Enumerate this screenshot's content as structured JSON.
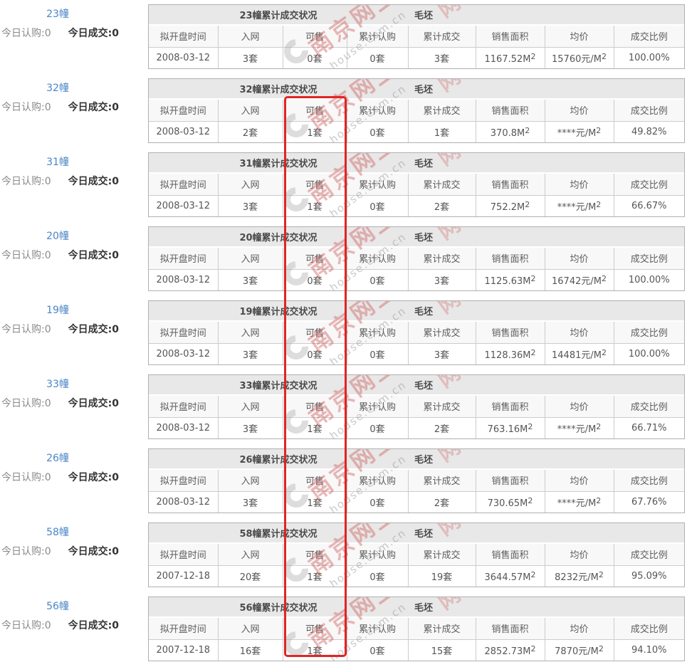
{
  "watermark": {
    "cn": "南京网上",
    "en": "house.com.cn",
    "fragment": "网上"
  },
  "highlight": {
    "color": "#e12424",
    "column": "可售"
  },
  "table": {
    "columns": [
      "拟开盘时间",
      "入网",
      "可售",
      "累计认购",
      "累计成交",
      "销售面积",
      "均价",
      "成交比例"
    ]
  },
  "blocks": [
    {
      "name": "23幢",
      "today_subscribe": "今日认购:0",
      "today_deal": "今日成交:0",
      "title": "23幢累计成交状况",
      "finish": "毛坯",
      "values": [
        "2008-03-12",
        "3套",
        "0套",
        "0套",
        "3套",
        "1167.52M²",
        "15760元/M²",
        "100.00%"
      ]
    },
    {
      "name": "32幢",
      "today_subscribe": "今日认购:0",
      "today_deal": "今日成交:0",
      "title": "32幢累计成交状况",
      "finish": "毛坯",
      "values": [
        "2008-03-12",
        "2套",
        "1套",
        "0套",
        "1套",
        "370.8M²",
        "****元/M²",
        "49.82%"
      ]
    },
    {
      "name": "31幢",
      "today_subscribe": "今日认购:0",
      "today_deal": "今日成交:0",
      "title": "31幢累计成交状况",
      "finish": "毛坯",
      "values": [
        "2008-03-12",
        "3套",
        "1套",
        "0套",
        "2套",
        "752.2M²",
        "****元/M²",
        "66.67%"
      ]
    },
    {
      "name": "20幢",
      "today_subscribe": "今日认购:0",
      "today_deal": "今日成交:0",
      "title": "20幢累计成交状况",
      "finish": "毛坯",
      "values": [
        "2008-03-12",
        "3套",
        "0套",
        "0套",
        "3套",
        "1125.63M²",
        "16742元/M²",
        "100.00%"
      ]
    },
    {
      "name": "19幢",
      "today_subscribe": "今日认购:0",
      "today_deal": "今日成交:0",
      "title": "19幢累计成交状况",
      "finish": "毛坯",
      "values": [
        "2008-03-12",
        "3套",
        "0套",
        "0套",
        "3套",
        "1128.36M²",
        "14481元/M²",
        "100.00%"
      ]
    },
    {
      "name": "33幢",
      "today_subscribe": "今日认购:0",
      "today_deal": "今日成交:0",
      "title": "33幢累计成交状况",
      "finish": "毛坯",
      "values": [
        "2008-03-12",
        "3套",
        "1套",
        "0套",
        "2套",
        "763.16M²",
        "****元/M²",
        "66.71%"
      ]
    },
    {
      "name": "26幢",
      "today_subscribe": "今日认购:0",
      "today_deal": "今日成交:0",
      "title": "26幢累计成交状况",
      "finish": "毛坯",
      "values": [
        "2008-03-12",
        "3套",
        "1套",
        "0套",
        "2套",
        "730.65M²",
        "****元/M²",
        "67.76%"
      ]
    },
    {
      "name": "58幢",
      "today_subscribe": "今日认购:0",
      "today_deal": "今日成交:0",
      "title": "58幢累计成交状况",
      "finish": "毛坯",
      "values": [
        "2007-12-18",
        "20套",
        "1套",
        "0套",
        "19套",
        "3644.57M²",
        "8232元/M²",
        "95.09%"
      ]
    },
    {
      "name": "56幢",
      "today_subscribe": "今日认购:0",
      "today_deal": "今日成交:0",
      "title": "56幢累计成交状况",
      "finish": "毛坯",
      "values": [
        "2007-12-18",
        "16套",
        "1套",
        "0套",
        "15套",
        "2852.73M²",
        "7870元/M²",
        "94.10%"
      ]
    }
  ]
}
